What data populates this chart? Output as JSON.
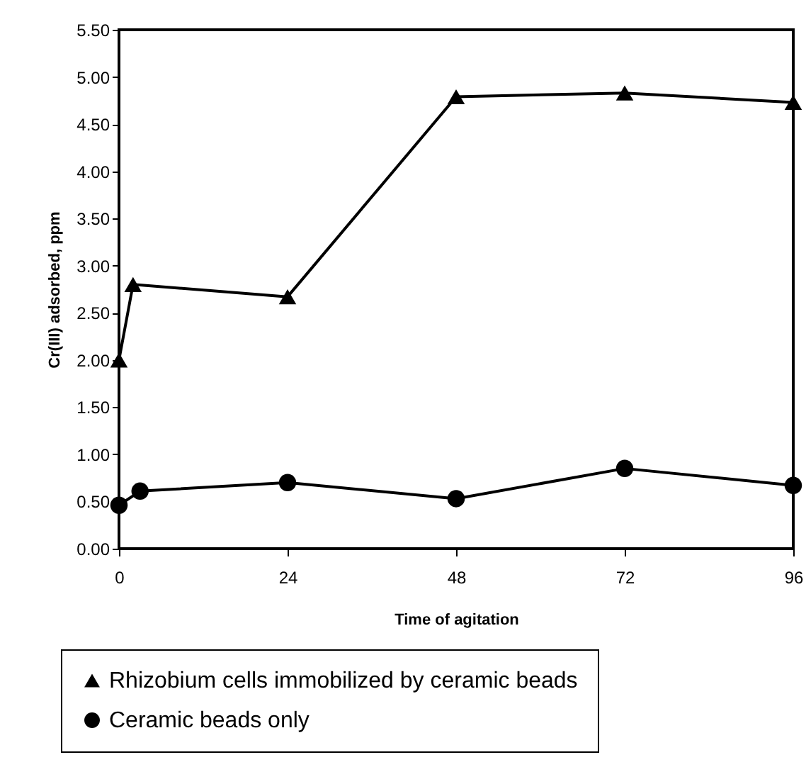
{
  "chart_data": {
    "type": "line",
    "xlabel": "Time of agitation",
    "ylabel": "Cr(III) adsorbed, ppm",
    "xlim": [
      0,
      96
    ],
    "xticks": [
      0,
      24,
      48,
      72,
      96
    ],
    "ylim": [
      0,
      5.5
    ],
    "yticks": [
      {
        "value": 0,
        "label": "0.00"
      },
      {
        "value": 0.5,
        "label": "0.50"
      },
      {
        "value": 1,
        "label": "1.00"
      },
      {
        "value": 1.5,
        "label": "1.50"
      },
      {
        "value": 2,
        "label": "2.00"
      },
      {
        "value": 2.5,
        "label": "2.50"
      },
      {
        "value": 3,
        "label": "3.00"
      },
      {
        "value": 3.5,
        "label": "3.50"
      },
      {
        "value": 4,
        "label": "4.00"
      },
      {
        "value": 4.5,
        "label": "4.50"
      },
      {
        "value": 5,
        "label": "5.00"
      },
      {
        "value": 5.5,
        "label": "5.50"
      }
    ],
    "grid": false,
    "legend": "bottom",
    "series": [
      {
        "name": "Rhizobium cells immobilized by ceramic beads",
        "color": "#000000",
        "marker": "triangle",
        "x": [
          0,
          2,
          24,
          48,
          72,
          96
        ],
        "values": [
          2.0,
          2.8,
          2.67,
          4.79,
          4.83,
          4.73
        ]
      },
      {
        "name": "Ceramic beads only",
        "color": "#000000",
        "marker": "circle",
        "x": [
          0,
          3,
          24,
          48,
          72,
          96
        ],
        "values": [
          0.46,
          0.61,
          0.7,
          0.53,
          0.85,
          0.67
        ]
      }
    ]
  }
}
